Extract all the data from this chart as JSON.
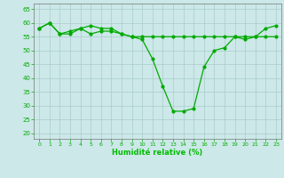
{
  "x": [
    0,
    1,
    2,
    3,
    4,
    5,
    6,
    7,
    8,
    9,
    10,
    11,
    12,
    13,
    14,
    15,
    16,
    17,
    18,
    19,
    20,
    21,
    22,
    23
  ],
  "y_main": [
    58,
    60,
    56,
    57,
    58,
    59,
    58,
    58,
    56,
    55,
    54,
    47,
    37,
    28,
    28,
    29,
    44,
    50,
    51,
    55,
    54,
    55,
    58,
    59
  ],
  "y_flat": [
    58,
    60,
    56,
    56,
    58,
    56,
    57,
    57,
    56,
    55,
    55,
    55,
    55,
    55,
    55,
    55,
    55,
    55,
    55,
    55,
    55,
    55,
    55,
    55
  ],
  "background_color": "#cce8e8",
  "grid_color": "#aacccc",
  "line_color": "#00aa00",
  "marker_color": "#00aa00",
  "xlabel": "Humidité relative (%)",
  "xlabel_color": "#00bb00",
  "tick_color": "#00aa00",
  "ylim": [
    18,
    67
  ],
  "xlim": [
    -0.5,
    23.5
  ],
  "yticks": [
    20,
    25,
    30,
    35,
    40,
    45,
    50,
    55,
    60,
    65
  ],
  "xticks": [
    0,
    1,
    2,
    3,
    4,
    5,
    6,
    7,
    8,
    9,
    10,
    11,
    12,
    13,
    14,
    15,
    16,
    17,
    18,
    19,
    20,
    21,
    22,
    23
  ]
}
